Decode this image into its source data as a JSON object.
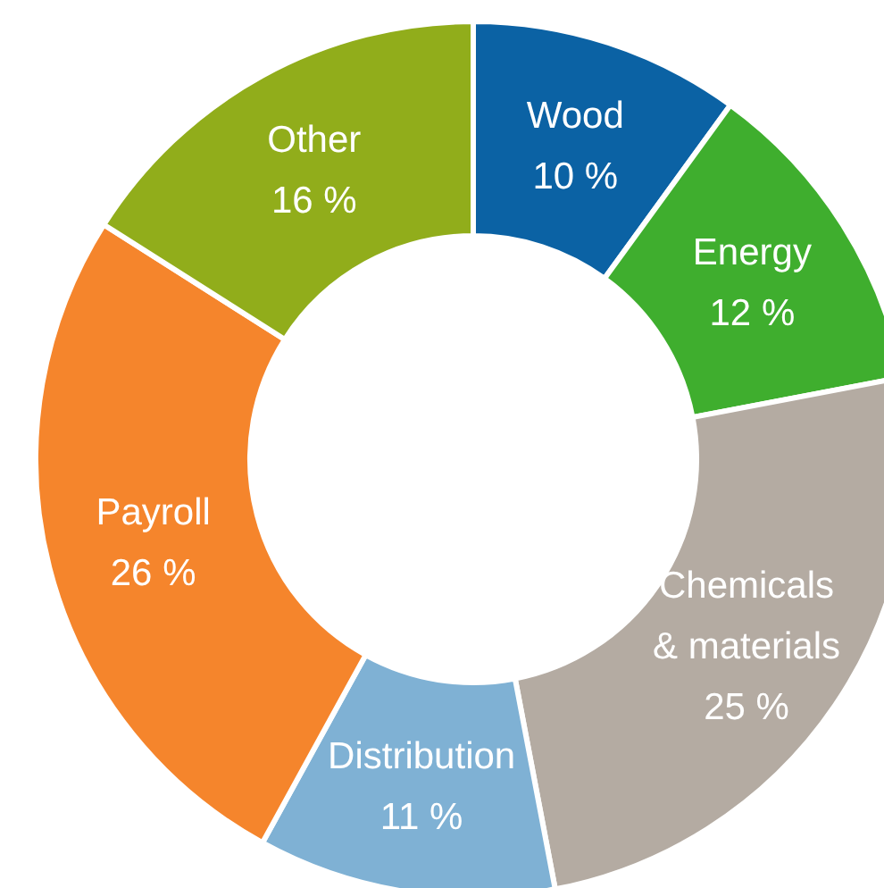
{
  "chart_data": {
    "type": "donut",
    "categories": [
      "Wood",
      "Energy",
      "Chemicals & materials",
      "Distribution",
      "Payroll",
      "Other"
    ],
    "values": [
      10,
      12,
      25,
      11,
      26,
      16
    ],
    "colors": [
      "#0b62a4",
      "#3fae2e",
      "#b4aba2",
      "#7fb1d4",
      "#f5852c",
      "#91ad1b"
    ],
    "value_labels": [
      "10 %",
      "12 %",
      "25 %",
      "11 %",
      "26 %",
      "16 %"
    ]
  }
}
